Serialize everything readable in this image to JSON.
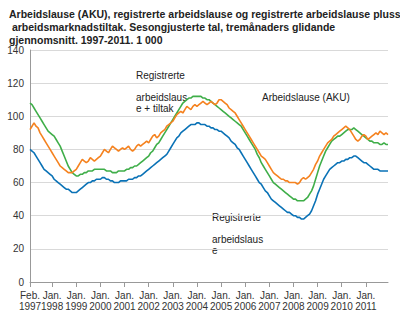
{
  "chart_data": {
    "type": "line",
    "title": "Arbeidslause (AKU), registrerte arbeidslause og registrerte arbeidslause pluss arbeidsmarknadstiltak. Sesongjusterte tal, tremånaders glidande gjennomsnitt. 1997-2011. 1 000",
    "categories": [
      "Feb. 1997",
      null,
      null,
      null,
      null,
      null,
      null,
      null,
      null,
      null,
      null,
      "Jan. 1998",
      null,
      null,
      null,
      null,
      null,
      null,
      null,
      null,
      null,
      null,
      null,
      "Jan. 1999",
      null,
      null,
      null,
      null,
      null,
      null,
      null,
      null,
      null,
      null,
      null,
      "Jan. 2000",
      null,
      null,
      null,
      null,
      null,
      null,
      null,
      null,
      null,
      null,
      null,
      "Jan. 2001",
      null,
      null,
      null,
      null,
      null,
      null,
      null,
      null,
      null,
      null,
      null,
      "Jan. 2002",
      null,
      null,
      null,
      null,
      null,
      null,
      null,
      null,
      null,
      null,
      null,
      "Jan. 2003",
      null,
      null,
      null,
      null,
      null,
      null,
      null,
      null,
      null,
      null,
      null,
      "Jan. 2004",
      null,
      null,
      null,
      null,
      null,
      null,
      null,
      null,
      null,
      null,
      null,
      "Jan. 2005",
      null,
      null,
      null,
      null,
      null,
      null,
      null,
      null,
      null,
      null,
      null,
      "Jan. 2006",
      null,
      null,
      null,
      null,
      null,
      null,
      null,
      null,
      null,
      null,
      null,
      "Jan. 2007",
      null,
      null,
      null,
      null,
      null,
      null,
      null,
      null,
      null,
      null,
      null,
      "Jan. 2008",
      null,
      null,
      null,
      null,
      null,
      null,
      null,
      null,
      null,
      null,
      null,
      "Jan. 2009",
      null,
      null,
      null,
      null,
      null,
      null,
      null,
      null,
      null,
      null,
      null,
      "Jan. 2010",
      null,
      null,
      null,
      null,
      null,
      null,
      null,
      null,
      null,
      null,
      null,
      "Jan. 2011",
      null,
      null,
      null,
      null,
      null,
      null,
      null,
      null,
      null,
      null,
      null
    ],
    "series": [
      {
        "name": "Registrerte arbeidslause + tiltak",
        "color": "#3fae49",
        "values": [
          108,
          107,
          105,
          103,
          101,
          99,
          97,
          95,
          93,
          91,
          90,
          89,
          88,
          86,
          84,
          82,
          79,
          76,
          73,
          70,
          68,
          66,
          65,
          64,
          64,
          65,
          65,
          66,
          66,
          67,
          67,
          67,
          68,
          68,
          68,
          68,
          68,
          68,
          67,
          67,
          67,
          66,
          66,
          66,
          67,
          67,
          67,
          67,
          68,
          68,
          69,
          69,
          70,
          70,
          71,
          72,
          73,
          74,
          75,
          76,
          78,
          79,
          81,
          83,
          84,
          86,
          88,
          90,
          92,
          94,
          96,
          98,
          100,
          102,
          104,
          106,
          108,
          109,
          110,
          111,
          111,
          112,
          112,
          112,
          112,
          112,
          111,
          111,
          110,
          110,
          109,
          108,
          107,
          106,
          105,
          104,
          103,
          102,
          101,
          100,
          99,
          98,
          97,
          96,
          95,
          94,
          92,
          90,
          88,
          86,
          84,
          82,
          80,
          77,
          75,
          72,
          70,
          68,
          66,
          64,
          62,
          60,
          59,
          58,
          57,
          56,
          55,
          54,
          53,
          52,
          51,
          50,
          50,
          49,
          49,
          49,
          49,
          50,
          51,
          53,
          55,
          58,
          62,
          66,
          70,
          73,
          76,
          79,
          81,
          83,
          85,
          86,
          87,
          88,
          88,
          89,
          90,
          91,
          92,
          92,
          92,
          93,
          92,
          91,
          90,
          89,
          88,
          87,
          86,
          85,
          85,
          84,
          84,
          84,
          83,
          83,
          84,
          83,
          83
        ]
      },
      {
        "name": "Arbeidslause (AKU)",
        "color": "#f5821f",
        "values": [
          92,
          94,
          96,
          94,
          93,
          90,
          88,
          86,
          84,
          82,
          80,
          78,
          76,
          74,
          72,
          70,
          69,
          68,
          67,
          66,
          66,
          66,
          67,
          68,
          70,
          72,
          74,
          73,
          72,
          73,
          75,
          74,
          73,
          74,
          75,
          76,
          78,
          80,
          79,
          78,
          80,
          82,
          81,
          80,
          79,
          80,
          81,
          80,
          81,
          82,
          80,
          79,
          80,
          82,
          83,
          82,
          83,
          84,
          85,
          84,
          86,
          88,
          89,
          87,
          88,
          90,
          91,
          92,
          94,
          95,
          96,
          97,
          99,
          101,
          102,
          103,
          102,
          104,
          106,
          105,
          104,
          106,
          107,
          106,
          107,
          108,
          109,
          108,
          107,
          108,
          109,
          108,
          107,
          108,
          110,
          110,
          109,
          108,
          107,
          105,
          104,
          103,
          102,
          100,
          98,
          96,
          94,
          92,
          90,
          88,
          86,
          84,
          82,
          80,
          78,
          76,
          75,
          74,
          72,
          70,
          68,
          66,
          65,
          64,
          63,
          62,
          62,
          61,
          61,
          60,
          60,
          60,
          60,
          59,
          60,
          62,
          63,
          62,
          63,
          64,
          66,
          68,
          71,
          73,
          76,
          78,
          80,
          82,
          84,
          85,
          86,
          88,
          89,
          90,
          91,
          92,
          93,
          94,
          93,
          92,
          90,
          88,
          86,
          85,
          86,
          88,
          89,
          88,
          86,
          87,
          88,
          89,
          90,
          89,
          91,
          90,
          89,
          90,
          89
        ]
      },
      {
        "name": "Registrerte arbeidslause",
        "color": "#0a72b6",
        "values": [
          80,
          79,
          78,
          76,
          74,
          72,
          70,
          68,
          67,
          66,
          65,
          64,
          62,
          61,
          60,
          59,
          58,
          57,
          56,
          56,
          55,
          54,
          54,
          54,
          55,
          56,
          57,
          58,
          59,
          60,
          60,
          61,
          61,
          62,
          62,
          62,
          63,
          63,
          62,
          62,
          61,
          61,
          60,
          60,
          60,
          61,
          61,
          61,
          61,
          62,
          62,
          62,
          63,
          63,
          64,
          64,
          65,
          66,
          67,
          68,
          69,
          70,
          71,
          72,
          73,
          74,
          75,
          76,
          77,
          79,
          81,
          83,
          85,
          87,
          88,
          90,
          91,
          92,
          93,
          94,
          95,
          95,
          95,
          96,
          96,
          95,
          95,
          95,
          94,
          94,
          93,
          93,
          92,
          92,
          91,
          91,
          90,
          89,
          88,
          87,
          85,
          84,
          83,
          81,
          80,
          78,
          76,
          74,
          72,
          70,
          68,
          66,
          64,
          62,
          60,
          59,
          57,
          55,
          54,
          52,
          50,
          49,
          48,
          47,
          46,
          45,
          44,
          43,
          42,
          42,
          41,
          40,
          40,
          39,
          39,
          38,
          38,
          39,
          40,
          41,
          43,
          46,
          49,
          53,
          56,
          59,
          62,
          64,
          66,
          68,
          69,
          70,
          71,
          72,
          72,
          73,
          73,
          74,
          74,
          75,
          75,
          76,
          76,
          75,
          74,
          73,
          72,
          72,
          71,
          70,
          69,
          68,
          68,
          68,
          67,
          67,
          67,
          67,
          67
        ]
      }
    ],
    "ylim": [
      0,
      140
    ],
    "yticks": [
      0,
      20,
      40,
      60,
      80,
      100,
      120,
      140
    ],
    "grid": true
  }
}
